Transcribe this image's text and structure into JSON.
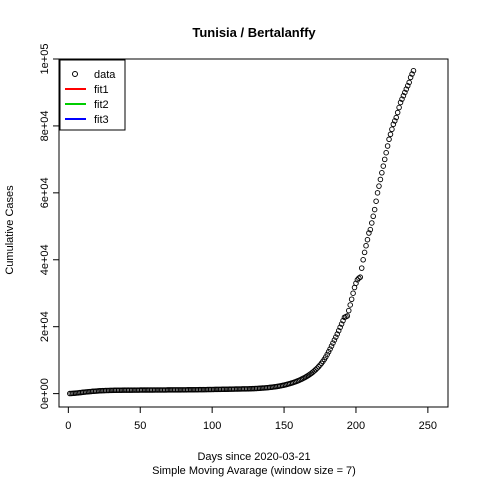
{
  "chart_data": {
    "type": "scatter",
    "title": "Tunisia / Bertalanffy",
    "xlabel": "Days since 2020-03-21",
    "xlabel2": "Simple Moving Avarage (window size = 7)",
    "ylabel": "Cumulative Cases",
    "xlim": [
      -6.5,
      264
    ],
    "ylim": [
      -4000,
      100000
    ],
    "x_ticks": [
      0,
      50,
      100,
      150,
      200,
      250
    ],
    "x_tick_labels": [
      "0",
      "50",
      "100",
      "150",
      "200",
      "250"
    ],
    "y_ticks": [
      0,
      20000,
      40000,
      60000,
      80000,
      100000
    ],
    "y_tick_labels": [
      "0e+00",
      "2e+04",
      "4e+04",
      "6e+04",
      "8e+04",
      "1e+05"
    ],
    "legend": {
      "position": "top-left",
      "entries": [
        {
          "label": "data",
          "symbol": "circle",
          "color": "#000000"
        },
        {
          "label": "fit1",
          "symbol": "line",
          "color": "#ff0000"
        },
        {
          "label": "fit2",
          "symbol": "line",
          "color": "#00cd00"
        },
        {
          "label": "fit3",
          "symbol": "line",
          "color": "#0000ff"
        }
      ]
    },
    "series": [
      {
        "marker": "open-circle",
        "points": [
          [
            1,
            20
          ],
          [
            2,
            45
          ],
          [
            3,
            75
          ],
          [
            4,
            110
          ],
          [
            5,
            150
          ],
          [
            6,
            190
          ],
          [
            7,
            230
          ],
          [
            8,
            280
          ],
          [
            9,
            330
          ],
          [
            10,
            390
          ],
          [
            11,
            440
          ],
          [
            12,
            490
          ],
          [
            13,
            530
          ],
          [
            14,
            570
          ],
          [
            15,
            610
          ],
          [
            16,
            650
          ],
          [
            17,
            690
          ],
          [
            18,
            720
          ],
          [
            19,
            750
          ],
          [
            20,
            780
          ],
          [
            21,
            810
          ],
          [
            22,
            840
          ],
          [
            23,
            860
          ],
          [
            24,
            880
          ],
          [
            25,
            900
          ],
          [
            26,
            920
          ],
          [
            27,
            935
          ],
          [
            28,
            950
          ],
          [
            29,
            962
          ],
          [
            30,
            975
          ],
          [
            31,
            985
          ],
          [
            32,
            995
          ],
          [
            33,
            1002
          ],
          [
            34,
            1008
          ],
          [
            35,
            1012
          ],
          [
            36,
            1018
          ],
          [
            37,
            1022
          ],
          [
            38,
            1026
          ],
          [
            39,
            1030
          ],
          [
            40,
            1034
          ],
          [
            41,
            1037
          ],
          [
            42,
            1040
          ],
          [
            43,
            1043
          ],
          [
            44,
            1046
          ],
          [
            45,
            1049
          ],
          [
            46,
            1052
          ],
          [
            47,
            1055
          ],
          [
            48,
            1058
          ],
          [
            49,
            1060
          ],
          [
            50,
            1062
          ],
          [
            51,
            1064
          ],
          [
            52,
            1066
          ],
          [
            53,
            1068
          ],
          [
            54,
            1070
          ],
          [
            55,
            1072
          ],
          [
            56,
            1074
          ],
          [
            57,
            1076
          ],
          [
            58,
            1078
          ],
          [
            59,
            1080
          ],
          [
            60,
            1082
          ],
          [
            61,
            1084
          ],
          [
            62,
            1086
          ],
          [
            63,
            1088
          ],
          [
            64,
            1090
          ],
          [
            65,
            1092
          ],
          [
            66,
            1094
          ],
          [
            67,
            1096
          ],
          [
            68,
            1098
          ],
          [
            69,
            1100
          ],
          [
            70,
            1102
          ],
          [
            71,
            1104
          ],
          [
            72,
            1106
          ],
          [
            73,
            1108
          ],
          [
            74,
            1110
          ],
          [
            75,
            1112
          ],
          [
            76,
            1114
          ],
          [
            77,
            1117
          ],
          [
            78,
            1120
          ],
          [
            79,
            1123
          ],
          [
            80,
            1126
          ],
          [
            81,
            1130
          ],
          [
            82,
            1134
          ],
          [
            83,
            1138
          ],
          [
            84,
            1142
          ],
          [
            85,
            1146
          ],
          [
            86,
            1150
          ],
          [
            87,
            1155
          ],
          [
            88,
            1160
          ],
          [
            89,
            1165
          ],
          [
            90,
            1170
          ],
          [
            91,
            1176
          ],
          [
            92,
            1182
          ],
          [
            93,
            1188
          ],
          [
            94,
            1194
          ],
          [
            95,
            1200
          ],
          [
            96,
            1207
          ],
          [
            97,
            1214
          ],
          [
            98,
            1221
          ],
          [
            99,
            1228
          ],
          [
            100,
            1235
          ],
          [
            101,
            1242
          ],
          [
            102,
            1250
          ],
          [
            103,
            1258
          ],
          [
            104,
            1266
          ],
          [
            105,
            1274
          ],
          [
            106,
            1282
          ],
          [
            107,
            1290
          ],
          [
            108,
            1298
          ],
          [
            109,
            1306
          ],
          [
            110,
            1314
          ],
          [
            111,
            1322
          ],
          [
            112,
            1330
          ],
          [
            113,
            1338
          ],
          [
            114,
            1346
          ],
          [
            115,
            1354
          ],
          [
            116,
            1362
          ],
          [
            117,
            1370
          ],
          [
            118,
            1378
          ],
          [
            119,
            1386
          ],
          [
            120,
            1394
          ],
          [
            121,
            1402
          ],
          [
            122,
            1410
          ],
          [
            123,
            1418
          ],
          [
            124,
            1426
          ],
          [
            125,
            1434
          ],
          [
            126,
            1445
          ],
          [
            127,
            1460
          ],
          [
            128,
            1480
          ],
          [
            129,
            1500
          ],
          [
            130,
            1520
          ],
          [
            131,
            1545
          ],
          [
            132,
            1570
          ],
          [
            133,
            1600
          ],
          [
            134,
            1630
          ],
          [
            135,
            1660
          ],
          [
            136,
            1690
          ],
          [
            137,
            1720
          ],
          [
            138,
            1760
          ],
          [
            139,
            1800
          ],
          [
            140,
            1850
          ],
          [
            141,
            1900
          ],
          [
            142,
            1950
          ],
          [
            143,
            2000
          ],
          [
            144,
            2060
          ],
          [
            145,
            2120
          ],
          [
            146,
            2200
          ],
          [
            147,
            2280
          ],
          [
            148,
            2360
          ],
          [
            149,
            2450
          ],
          [
            150,
            2540
          ],
          [
            151,
            2650
          ],
          [
            152,
            2760
          ],
          [
            153,
            2880
          ],
          [
            154,
            3000
          ],
          [
            155,
            3120
          ],
          [
            156,
            3250
          ],
          [
            157,
            3400
          ],
          [
            158,
            3560
          ],
          [
            159,
            3730
          ],
          [
            160,
            3900
          ],
          [
            161,
            4080
          ],
          [
            162,
            4280
          ],
          [
            163,
            4500
          ],
          [
            164,
            4720
          ],
          [
            165,
            4960
          ],
          [
            166,
            5210
          ],
          [
            167,
            5480
          ],
          [
            168,
            5770
          ],
          [
            169,
            6080
          ],
          [
            170,
            6420
          ],
          [
            171,
            6780
          ],
          [
            172,
            7170
          ],
          [
            173,
            7590
          ],
          [
            174,
            8040
          ],
          [
            175,
            8520
          ],
          [
            176,
            9050
          ],
          [
            177,
            9620
          ],
          [
            178,
            10250
          ],
          [
            179,
            10940
          ],
          [
            180,
            11700
          ],
          [
            181,
            12500
          ],
          [
            182,
            13300
          ],
          [
            183,
            14200
          ],
          [
            184,
            15100
          ],
          [
            185,
            16000
          ],
          [
            186,
            16900
          ],
          [
            187,
            17800
          ],
          [
            188,
            18800
          ],
          [
            189,
            19800
          ],
          [
            190,
            20800
          ],
          [
            191,
            21800
          ],
          [
            192,
            22800
          ],
          [
            193,
            23000
          ],
          [
            194,
            23200
          ],
          [
            195,
            24800
          ],
          [
            196,
            26500
          ],
          [
            197,
            28200
          ],
          [
            198,
            30000
          ],
          [
            199,
            31700
          ],
          [
            200,
            33000
          ],
          [
            201,
            34000
          ],
          [
            202,
            34500
          ],
          [
            203,
            34800
          ],
          [
            204,
            37500
          ],
          [
            205,
            40000
          ],
          [
            206,
            42200
          ],
          [
            207,
            44200
          ],
          [
            208,
            46000
          ],
          [
            209,
            48000
          ],
          [
            210,
            49000
          ],
          [
            211,
            51000
          ],
          [
            212,
            53000
          ],
          [
            213,
            55000
          ],
          [
            214,
            57500
          ],
          [
            215,
            60000
          ],
          [
            216,
            62000
          ],
          [
            217,
            64000
          ],
          [
            218,
            66000
          ],
          [
            219,
            68000
          ],
          [
            220,
            70000
          ],
          [
            221,
            72000
          ],
          [
            222,
            74000
          ],
          [
            223,
            76000
          ],
          [
            224,
            77500
          ],
          [
            225,
            79000
          ],
          [
            226,
            80500
          ],
          [
            227,
            81500
          ],
          [
            228,
            82500
          ],
          [
            229,
            84000
          ],
          [
            230,
            85500
          ],
          [
            231,
            87000
          ],
          [
            232,
            88000
          ],
          [
            233,
            89000
          ],
          [
            234,
            90000
          ],
          [
            235,
            91000
          ],
          [
            236,
            92000
          ],
          [
            237,
            93000
          ],
          [
            238,
            94500
          ],
          [
            239,
            95500
          ],
          [
            240,
            96500
          ]
        ]
      }
    ]
  }
}
